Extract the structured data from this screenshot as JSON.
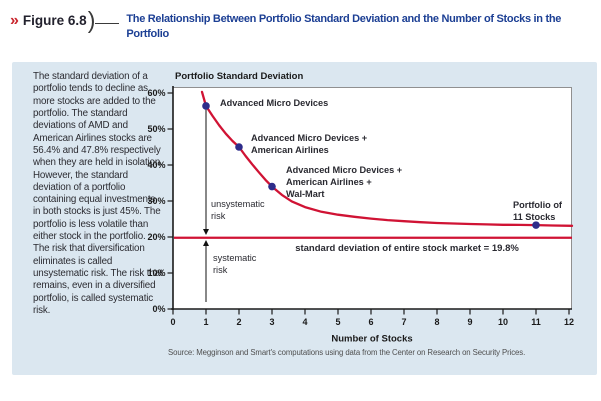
{
  "header": {
    "chevron": "»",
    "figure_label": "Figure 6.8",
    "title": "The Relationship Between Portfolio Standard Deviation and the Number of Stocks in the Portfolio"
  },
  "sidebar": {
    "text": "The standard deviation of a portfolio tends to decline as more stocks are added to the portfolio. The standard deviations of AMD and American Airlines stocks are 56.4% and 47.8% respectively when they are held in isolation. However, the standard deviation of a portfolio containing equal investments in both stocks is just 45%. The portfolio is less volatile than either stock in the portfolio. The risk that diversification eliminates is called unsystematic risk. The risk that remains, even in a diversified portfolio, is called systematic risk."
  },
  "chart_data": {
    "type": "line",
    "title": "Portfolio Standard Deviation",
    "xlabel": "Number of Stocks",
    "xlim": [
      0,
      12
    ],
    "ylim": [
      0,
      60
    ],
    "x_ticks": [
      "0",
      "1",
      "2",
      "3",
      "4",
      "5",
      "6",
      "7",
      "8",
      "9",
      "10",
      "11",
      "12"
    ],
    "y_ticks": [
      "0%",
      "10%",
      "20%",
      "30%",
      "40%",
      "50%",
      "60%"
    ],
    "curve": [
      [
        0.88,
        60.3
      ],
      [
        1,
        56.4
      ],
      [
        1.2,
        53.6
      ],
      [
        1.4,
        51.0
      ],
      [
        1.6,
        48.7
      ],
      [
        1.8,
        46.7
      ],
      [
        2,
        45.0
      ],
      [
        2.2,
        42.5
      ],
      [
        2.4,
        40.2
      ],
      [
        2.6,
        38.0
      ],
      [
        2.8,
        35.9
      ],
      [
        3,
        34.0
      ],
      [
        3.3,
        31.7
      ],
      [
        3.6,
        29.9
      ],
      [
        4,
        28.3
      ],
      [
        4.5,
        27.0
      ],
      [
        5,
        26.2
      ],
      [
        5.5,
        25.6
      ],
      [
        6,
        25.1
      ],
      [
        6.5,
        24.7
      ],
      [
        7,
        24.4
      ],
      [
        7.5,
        24.1
      ],
      [
        8,
        23.9
      ],
      [
        8.5,
        23.75
      ],
      [
        9,
        23.6
      ],
      [
        9.5,
        23.5
      ],
      [
        10,
        23.4
      ],
      [
        10.5,
        23.35
      ],
      [
        11,
        23.3
      ],
      [
        11.5,
        23.2
      ],
      [
        12.09,
        23.1
      ]
    ],
    "points": [
      {
        "x": 1,
        "y": 56.4,
        "label_lines": [
          "Advanced Micro Devices"
        ]
      },
      {
        "x": 2,
        "y": 45.0,
        "label_lines": [
          "Advanced Micro Devices +",
          "American Airlines"
        ]
      },
      {
        "x": 3,
        "y": 34.0,
        "label_lines": [
          "Advanced Micro Devices +",
          "American Airlines +",
          "Wal-Mart"
        ]
      },
      {
        "x": 11,
        "y": 23.3,
        "label_lines": [
          "Portfolio of",
          "11 Stocks"
        ]
      }
    ],
    "market_line": {
      "y": 19.8,
      "label": "standard deviation of entire stock market = 19.8%"
    },
    "risk_annotations": [
      {
        "label_lines": [
          "unsystematic",
          "risk"
        ]
      },
      {
        "label_lines": [
          "systematic",
          "risk"
        ]
      }
    ],
    "colors": {
      "curve": "#d01334",
      "point": "#2e2c8a",
      "panel": "#dbe7f0",
      "title_blue": "#1c3f94",
      "chevron_red": "#c9252c"
    }
  },
  "source": "Source: Megginson and Smart's computations using data from the Center on Research on Security Prices."
}
